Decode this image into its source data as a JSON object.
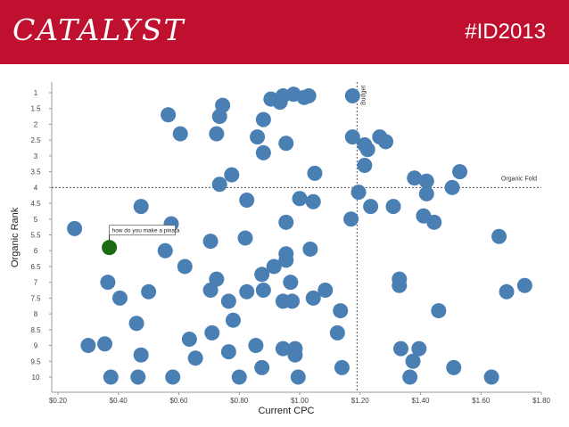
{
  "header": {
    "brand": "CATALYST",
    "hashtag": "#ID2013"
  },
  "colors": {
    "header_bg": "#c0102f",
    "point": "#4a7fb4",
    "highlight_point": "#1a6b14",
    "text_on_header": "#ffffff"
  },
  "chart_data": {
    "type": "scatter",
    "xlabel": "Current CPC",
    "ylabel": "Organic Rank",
    "xlim": [
      0.2,
      1.8
    ],
    "ylim": [
      0.5,
      10.3
    ],
    "y_inverted": true,
    "grid": false,
    "x_ticks": [
      {
        "v": 0.2,
        "label": "$0.20"
      },
      {
        "v": 0.4,
        "label": "$0.40"
      },
      {
        "v": 0.6,
        "label": "$0.60"
      },
      {
        "v": 0.8,
        "label": "$0.80"
      },
      {
        "v": 1.0,
        "label": "$1.00"
      },
      {
        "v": 1.2,
        "label": "$1.20"
      },
      {
        "v": 1.4,
        "label": "$1.40"
      },
      {
        "v": 1.6,
        "label": "$1.60"
      },
      {
        "v": 1.8,
        "label": "$1.80"
      }
    ],
    "y_ticks": [
      {
        "v": 1,
        "label": "1"
      },
      {
        "v": 1.5,
        "label": "1.5"
      },
      {
        "v": 2,
        "label": "2"
      },
      {
        "v": 2.5,
        "label": "2.5"
      },
      {
        "v": 3,
        "label": "3"
      },
      {
        "v": 3.5,
        "label": "3.5"
      },
      {
        "v": 4,
        "label": "4"
      },
      {
        "v": 4.5,
        "label": "4.5"
      },
      {
        "v": 5,
        "label": "5"
      },
      {
        "v": 5.5,
        "label": "5.5"
      },
      {
        "v": 6,
        "label": "6"
      },
      {
        "v": 6.5,
        "label": "6.5"
      },
      {
        "v": 7,
        "label": "7"
      },
      {
        "v": 7.5,
        "label": "7.5"
      },
      {
        "v": 8,
        "label": "8"
      },
      {
        "v": 8.5,
        "label": "8.5"
      },
      {
        "v": 9,
        "label": "9"
      },
      {
        "v": 9.5,
        "label": "9.5"
      },
      {
        "v": 10,
        "label": "10"
      }
    ],
    "reference_lines": [
      {
        "orientation": "vertical",
        "value": 1.19,
        "label": "Budget"
      },
      {
        "orientation": "horizontal",
        "value": 4.0,
        "label": "Organic Fold"
      }
    ],
    "highlight": {
      "x": 0.37,
      "y": 5.9,
      "label": "how do you make a pinata"
    },
    "points": [
      {
        "x": 0.565,
        "y": 1.7
      },
      {
        "x": 0.745,
        "y": 1.4
      },
      {
        "x": 0.735,
        "y": 1.75
      },
      {
        "x": 0.88,
        "y": 1.85
      },
      {
        "x": 0.905,
        "y": 1.2
      },
      {
        "x": 0.935,
        "y": 1.3
      },
      {
        "x": 0.945,
        "y": 1.1
      },
      {
        "x": 0.98,
        "y": 1.05
      },
      {
        "x": 1.015,
        "y": 1.15
      },
      {
        "x": 1.03,
        "y": 1.1
      },
      {
        "x": 1.175,
        "y": 1.1
      },
      {
        "x": 0.605,
        "y": 2.3
      },
      {
        "x": 0.725,
        "y": 2.3
      },
      {
        "x": 0.86,
        "y": 2.4
      },
      {
        "x": 0.955,
        "y": 2.6
      },
      {
        "x": 1.175,
        "y": 2.4
      },
      {
        "x": 1.215,
        "y": 2.65
      },
      {
        "x": 1.225,
        "y": 2.8
      },
      {
        "x": 1.265,
        "y": 2.4
      },
      {
        "x": 1.285,
        "y": 2.55
      },
      {
        "x": 0.88,
        "y": 2.9
      },
      {
        "x": 1.215,
        "y": 3.3
      },
      {
        "x": 0.775,
        "y": 3.6
      },
      {
        "x": 0.735,
        "y": 3.9
      },
      {
        "x": 1.05,
        "y": 3.55
      },
      {
        "x": 1.38,
        "y": 3.7
      },
      {
        "x": 1.42,
        "y": 3.8
      },
      {
        "x": 1.53,
        "y": 3.5
      },
      {
        "x": 1.505,
        "y": 4.0
      },
      {
        "x": 1.195,
        "y": 4.15
      },
      {
        "x": 1.42,
        "y": 4.2
      },
      {
        "x": 0.825,
        "y": 4.4
      },
      {
        "x": 1.0,
        "y": 4.35
      },
      {
        "x": 1.045,
        "y": 4.45
      },
      {
        "x": 1.235,
        "y": 4.6
      },
      {
        "x": 1.31,
        "y": 4.6
      },
      {
        "x": 0.475,
        "y": 4.6
      },
      {
        "x": 1.41,
        "y": 4.9
      },
      {
        "x": 1.445,
        "y": 5.1
      },
      {
        "x": 1.17,
        "y": 5.0
      },
      {
        "x": 0.955,
        "y": 5.1
      },
      {
        "x": 0.575,
        "y": 5.15
      },
      {
        "x": 0.255,
        "y": 5.3
      },
      {
        "x": 0.82,
        "y": 5.6
      },
      {
        "x": 0.705,
        "y": 5.7
      },
      {
        "x": 1.66,
        "y": 5.55
      },
      {
        "x": 0.555,
        "y": 6.0
      },
      {
        "x": 0.955,
        "y": 6.1
      },
      {
        "x": 1.035,
        "y": 5.95
      },
      {
        "x": 0.955,
        "y": 6.3
      },
      {
        "x": 0.915,
        "y": 6.5
      },
      {
        "x": 0.875,
        "y": 6.75
      },
      {
        "x": 0.62,
        "y": 6.5
      },
      {
        "x": 0.365,
        "y": 7.0
      },
      {
        "x": 0.725,
        "y": 6.9
      },
      {
        "x": 0.97,
        "y": 7.0
      },
      {
        "x": 1.33,
        "y": 6.9
      },
      {
        "x": 1.33,
        "y": 7.1
      },
      {
        "x": 0.705,
        "y": 7.25
      },
      {
        "x": 0.825,
        "y": 7.3
      },
      {
        "x": 0.88,
        "y": 7.25
      },
      {
        "x": 1.085,
        "y": 7.25
      },
      {
        "x": 1.745,
        "y": 7.1
      },
      {
        "x": 1.685,
        "y": 7.3
      },
      {
        "x": 0.5,
        "y": 7.3
      },
      {
        "x": 0.405,
        "y": 7.5
      },
      {
        "x": 0.765,
        "y": 7.6
      },
      {
        "x": 0.945,
        "y": 7.6
      },
      {
        "x": 0.975,
        "y": 7.6
      },
      {
        "x": 1.045,
        "y": 7.5
      },
      {
        "x": 1.135,
        "y": 7.9
      },
      {
        "x": 1.46,
        "y": 7.9
      },
      {
        "x": 0.78,
        "y": 8.2
      },
      {
        "x": 0.46,
        "y": 8.3
      },
      {
        "x": 0.71,
        "y": 8.6
      },
      {
        "x": 1.125,
        "y": 8.6
      },
      {
        "x": 0.635,
        "y": 8.8
      },
      {
        "x": 0.3,
        "y": 9.0
      },
      {
        "x": 0.355,
        "y": 8.95
      },
      {
        "x": 0.855,
        "y": 9.0
      },
      {
        "x": 0.945,
        "y": 9.1
      },
      {
        "x": 0.985,
        "y": 9.1
      },
      {
        "x": 1.335,
        "y": 9.1
      },
      {
        "x": 1.395,
        "y": 9.1
      },
      {
        "x": 0.765,
        "y": 9.2
      },
      {
        "x": 0.475,
        "y": 9.3
      },
      {
        "x": 0.985,
        "y": 9.3
      },
      {
        "x": 0.655,
        "y": 9.4
      },
      {
        "x": 1.375,
        "y": 9.5
      },
      {
        "x": 0.875,
        "y": 9.7
      },
      {
        "x": 1.14,
        "y": 9.7
      },
      {
        "x": 1.51,
        "y": 9.7
      },
      {
        "x": 0.375,
        "y": 10.0
      },
      {
        "x": 0.465,
        "y": 10.0
      },
      {
        "x": 0.58,
        "y": 10.0
      },
      {
        "x": 0.8,
        "y": 10.0
      },
      {
        "x": 0.995,
        "y": 10.0
      },
      {
        "x": 1.365,
        "y": 10.0
      },
      {
        "x": 1.635,
        "y": 10.0
      }
    ]
  }
}
